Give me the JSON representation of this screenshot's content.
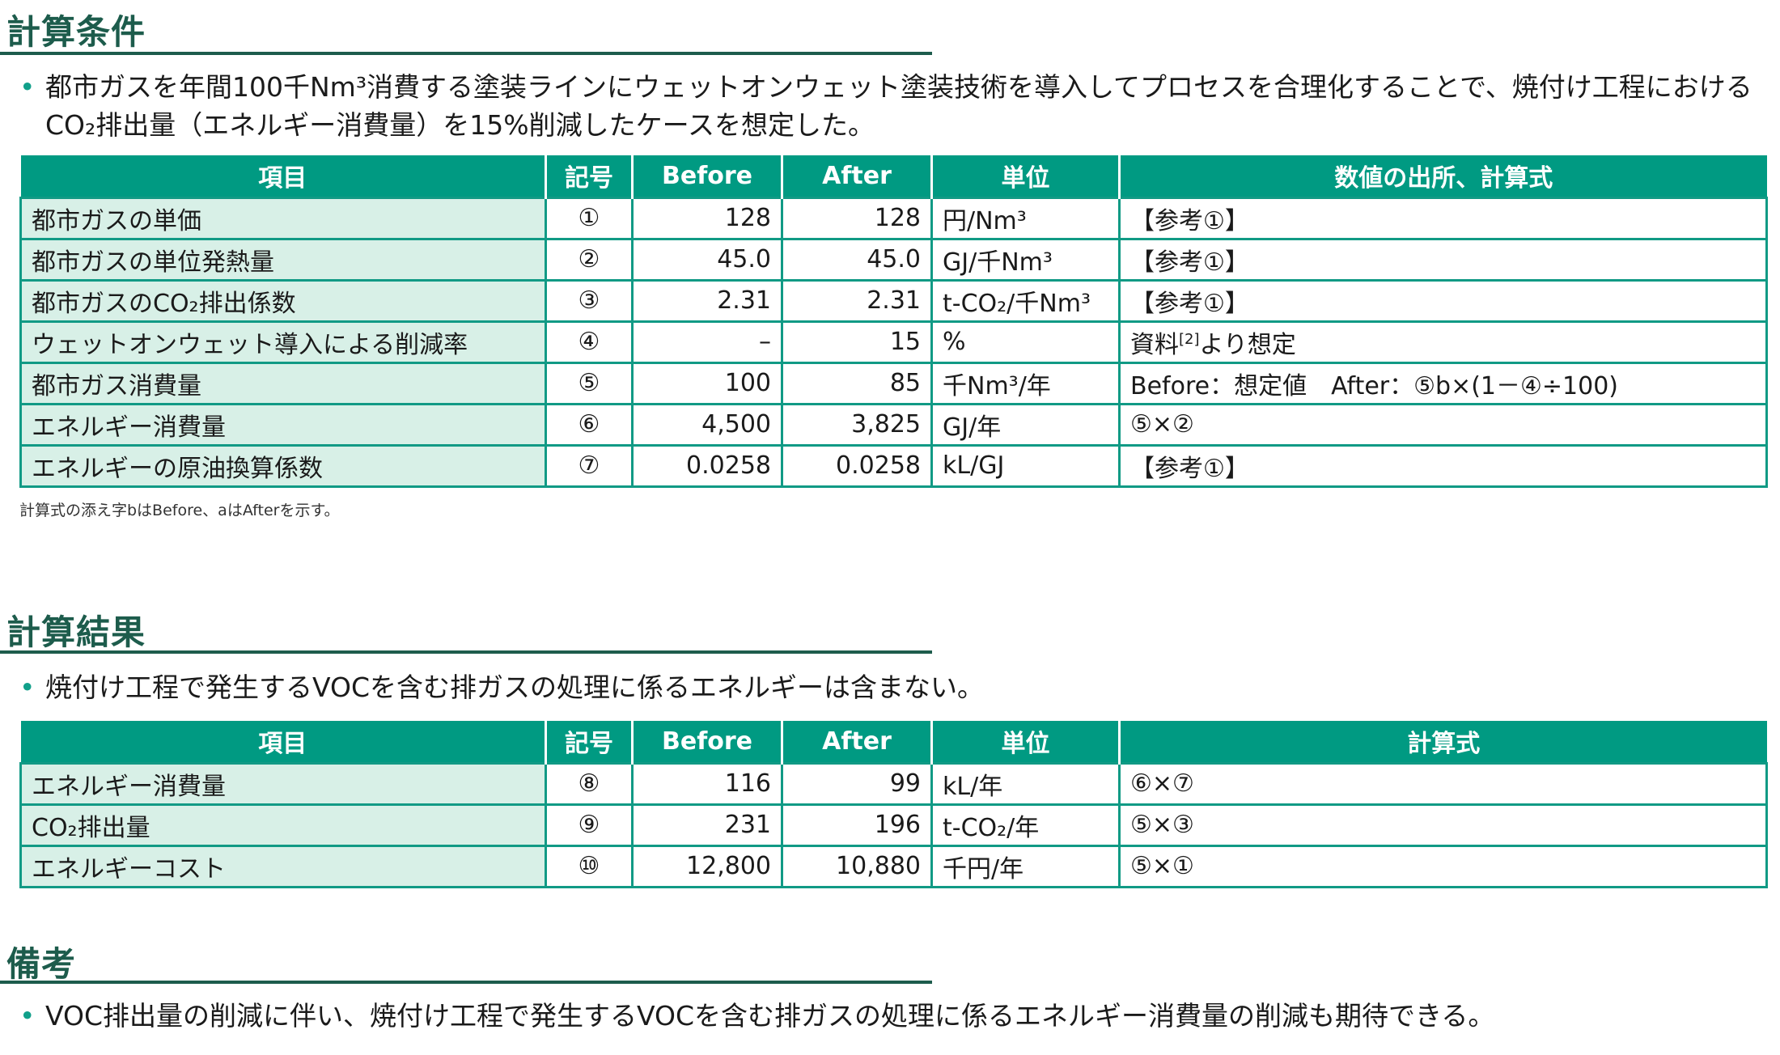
{
  "sections": {
    "conditions": {
      "title": "計算条件",
      "bullet": [
        "都市ガスを年間100千Nm³消費する塗装ラインにウェットオンウェット塗装技術を導入してプロセスを合理化することで、焼付け工程における",
        "CO₂排出量（エネルギー消費量）を15%削減したケースを想定した。"
      ]
    },
    "results": {
      "title": "計算結果",
      "bullet": "焼付け工程で発生するVOCを含む排ガスの処理に係るエネルギーは含まない。"
    },
    "remarks": {
      "title": "備考",
      "bullet": "VOC排出量の削減に伴い、焼付け工程で発生するVOCを含む排ガスの処理に係るエネルギー消費量の削減も期待できる。"
    }
  },
  "table1": {
    "headers": [
      "項目",
      "記号",
      "Before",
      "After",
      "単位",
      "数値の出所、計算式"
    ],
    "rows": [
      [
        "都市ガスの単価",
        "①",
        "128",
        "128",
        "円/Nm³",
        "【参考①】"
      ],
      [
        "都市ガスの単位発熱量",
        "②",
        "45.0",
        "45.0",
        "GJ/千Nm³",
        "【参考①】"
      ],
      [
        "都市ガスのCO₂排出係数",
        "③",
        "2.31",
        "2.31",
        "t-CO₂/千Nm³",
        "【参考①】"
      ],
      [
        "ウェットオンウェット導入による削減率",
        "④",
        "–",
        "15",
        "%",
        "資料"
      ],
      [
        "都市ガス消費量",
        "⑤",
        "100",
        "85",
        "千Nm³/年",
        "Before：想定値　After：⑤b×(1－④÷100)"
      ],
      [
        "エネルギー消費量",
        "⑥",
        "4,500",
        "3,825",
        "GJ/年",
        "⑤×②"
      ],
      [
        "エネルギーの原油換算係数",
        "⑦",
        "0.0258",
        "0.0258",
        "kL/GJ",
        "【参考①】"
      ]
    ],
    "row4_ref": "[2]",
    "row4_suffix": "より想定",
    "note": "計算式の添え字bはBefore、aはAfterを示す。"
  },
  "table2": {
    "headers": [
      "項目",
      "記号",
      "Before",
      "After",
      "単位",
      "計算式"
    ],
    "rows": [
      [
        "エネルギー消費量",
        "⑧",
        "116",
        "99",
        "kL/年",
        "⑥×⑦"
      ],
      [
        "CO₂排出量",
        "⑨",
        "231",
        "196",
        "t-CO₂/年",
        "⑤×③"
      ],
      [
        "エネルギーコスト",
        "⑩",
        "12,800",
        "10,880",
        "千円/年",
        "⑤×①"
      ]
    ]
  }
}
